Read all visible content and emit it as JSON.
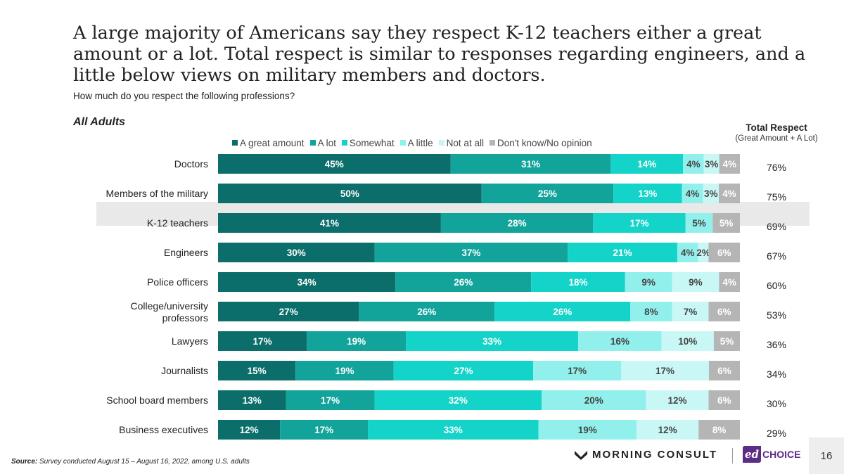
{
  "chart_data": {
    "type": "bar",
    "orientation": "horizontal-stacked-100",
    "title": "A large majority of Americans say they respect K-12 teachers either a great amount or a lot. Total respect is similar to responses regarding engineers, and a little below views on military members and doctors.",
    "subtitle": "How much do you respect the following professions?",
    "group_label": "All Adults",
    "highlighted_category": "K-12 teachers",
    "categories": [
      "Doctors",
      "Members of the military",
      "K-12 teachers",
      "Engineers",
      "Police officers",
      "College/university professors",
      "Lawyers",
      "Journalists",
      "School board members",
      "Business executives"
    ],
    "series": [
      {
        "name": "A great amount",
        "color": "#0b6e6a",
        "label_color": "#ffffff",
        "values": [
          45,
          50,
          41,
          30,
          34,
          27,
          17,
          15,
          13,
          12
        ]
      },
      {
        "name": "A lot",
        "color": "#12a39a",
        "label_color": "#ffffff",
        "values": [
          31,
          25,
          28,
          37,
          26,
          26,
          19,
          19,
          17,
          17
        ]
      },
      {
        "name": "Somewhat",
        "color": "#14d3c8",
        "label_color": "#ffffff",
        "values": [
          14,
          13,
          17,
          21,
          18,
          26,
          33,
          27,
          32,
          33
        ]
      },
      {
        "name": "A little",
        "color": "#92f0ec",
        "label_color": "#444444",
        "values": [
          4,
          4,
          5,
          4,
          9,
          8,
          16,
          17,
          20,
          19
        ]
      },
      {
        "name": "Not at all",
        "color": "#c9f7f5",
        "label_color": "#444444",
        "values": [
          3,
          3,
          0,
          2,
          9,
          7,
          10,
          17,
          12,
          12
        ]
      },
      {
        "name": "Don't know/No opinion",
        "color": "#b5b5b5",
        "label_color": "#ffffff",
        "values": [
          4,
          4,
          5,
          6,
          4,
          6,
          5,
          6,
          6,
          8
        ]
      }
    ],
    "total_respect": {
      "title": "Total Respect",
      "subtitle": "(Great Amount + A Lot)",
      "values": [
        "76%",
        "75%",
        "69%",
        "67%",
        "60%",
        "53%",
        "36%",
        "34%",
        "30%",
        "29%"
      ]
    },
    "value_suffix": "%"
  },
  "footer": {
    "source_label": "Source:",
    "source_text": " Survey conducted August 15 – August 16, 2022, among U.S. adults",
    "logo_morning_consult": "MORNING CONSULT",
    "logo_edchoice_ed": "ed",
    "logo_edchoice_choice": "CHOICE",
    "page_number": "16"
  }
}
